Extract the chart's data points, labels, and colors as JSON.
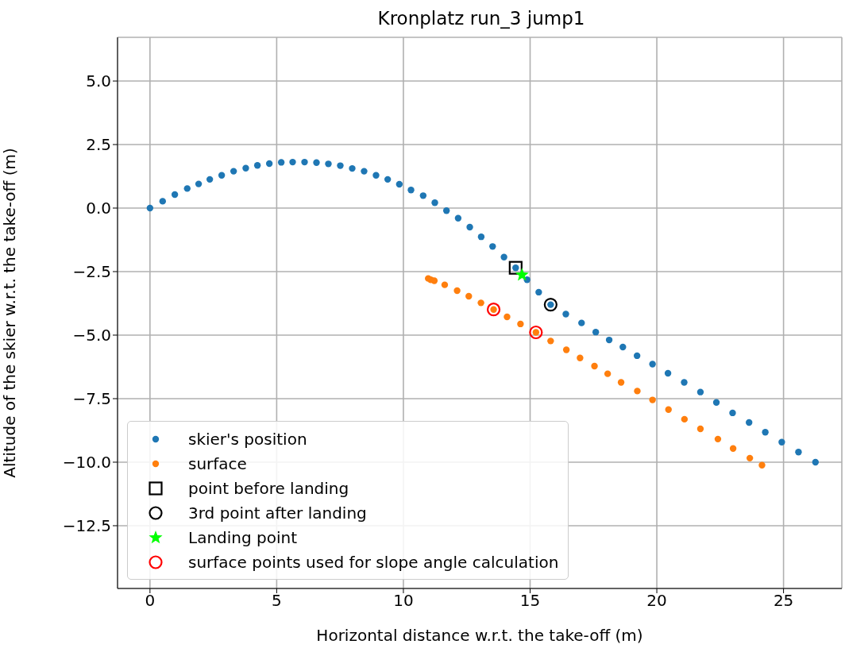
{
  "chart_data": {
    "type": "scatter",
    "title": "Kronplatz run_3 jump1",
    "xlabel": "Horizontal distance w.r.t. the take-off (m)",
    "ylabel": "Altitude of the skier w.r.t. the take-off (m)",
    "xlim": [
      -1.28,
      27.3
    ],
    "ylim": [
      -14.97,
      6.72
    ],
    "xticks": [
      0,
      5,
      10,
      15,
      20,
      25
    ],
    "yticks": [
      {
        "value": -12.5,
        "label": "−12.5"
      },
      {
        "value": -10,
        "label": "−10.0"
      },
      {
        "value": -7.5,
        "label": "−7.5"
      },
      {
        "value": -5,
        "label": "−5.0"
      },
      {
        "value": -2.5,
        "label": "−2.5"
      },
      {
        "value": 0,
        "label": "0.0"
      },
      {
        "value": 2.5,
        "label": "2.5"
      },
      {
        "value": 5,
        "label": "5.0"
      }
    ],
    "grid": true,
    "legend": "bottom left",
    "series": [
      {
        "name": "skier's position",
        "color": "#1f77b4",
        "marker": "circle",
        "x": [
          0,
          0.5,
          0.98,
          1.47,
          1.92,
          2.36,
          2.83,
          3.3,
          3.78,
          4.24,
          4.71,
          5.18,
          5.63,
          6.1,
          6.57,
          7.04,
          7.51,
          7.98,
          8.45,
          8.92,
          9.38,
          9.84,
          10.3,
          10.78,
          11.24,
          11.7,
          12.16,
          12.62,
          13.07,
          13.52,
          13.97,
          14.43,
          14.88,
          15.34,
          15.81,
          16.41,
          17.03,
          17.59,
          18.12,
          18.66,
          19.22,
          19.83,
          20.44,
          21.08,
          21.72,
          22.35,
          22.99,
          23.64,
          24.28,
          24.93,
          25.59,
          26.26
        ],
        "values": [
          0,
          0.27,
          0.53,
          0.77,
          0.95,
          1.13,
          1.29,
          1.45,
          1.57,
          1.68,
          1.75,
          1.8,
          1.81,
          1.81,
          1.79,
          1.74,
          1.67,
          1.56,
          1.45,
          1.29,
          1.13,
          0.94,
          0.71,
          0.49,
          0.21,
          -0.1,
          -0.4,
          -0.75,
          -1.13,
          -1.51,
          -1.93,
          -2.35,
          -2.82,
          -3.31,
          -3.8,
          -4.17,
          -4.52,
          -4.88,
          -5.19,
          -5.47,
          -5.81,
          -6.14,
          -6.5,
          -6.86,
          -7.24,
          -7.65,
          -8.06,
          -8.44,
          -8.82,
          -9.21,
          -9.6,
          -10.0
        ]
      },
      {
        "name": "surface",
        "color": "#ff7f0e",
        "marker": "circle",
        "x": [
          10.98,
          11.08,
          11.22,
          11.63,
          12.12,
          12.58,
          13.06,
          13.56,
          14.09,
          14.62,
          15.23,
          15.81,
          16.43,
          16.97,
          17.54,
          18.06,
          18.59,
          19.23,
          19.83,
          20.46,
          21.09,
          21.72,
          22.41,
          23.01,
          23.67,
          24.15
        ],
        "values": [
          -2.77,
          -2.82,
          -2.86,
          -3.02,
          -3.25,
          -3.47,
          -3.73,
          -3.99,
          -4.28,
          -4.56,
          -4.89,
          -5.23,
          -5.58,
          -5.9,
          -6.22,
          -6.52,
          -6.86,
          -7.2,
          -7.55,
          -7.93,
          -8.31,
          -8.69,
          -9.09,
          -9.46,
          -9.84,
          -10.12
        ]
      },
      {
        "name": "point before landing",
        "color": "#000000",
        "marker": "square",
        "x": [
          14.43
        ],
        "values": [
          -2.35
        ]
      },
      {
        "name": "3rd point after landing",
        "color": "#000000",
        "marker": "circle",
        "x": [
          15.81
        ],
        "values": [
          -3.8
        ]
      },
      {
        "name": "Landing point",
        "color": "#00ff00",
        "marker": "star",
        "x": [
          14.68
        ],
        "values": [
          -2.63
        ]
      },
      {
        "name": "surface points used for slope angle calculation",
        "color": "#ff0000",
        "marker": "circle",
        "x": [
          13.56,
          15.23
        ],
        "values": [
          -3.99,
          -4.89
        ]
      }
    ]
  }
}
